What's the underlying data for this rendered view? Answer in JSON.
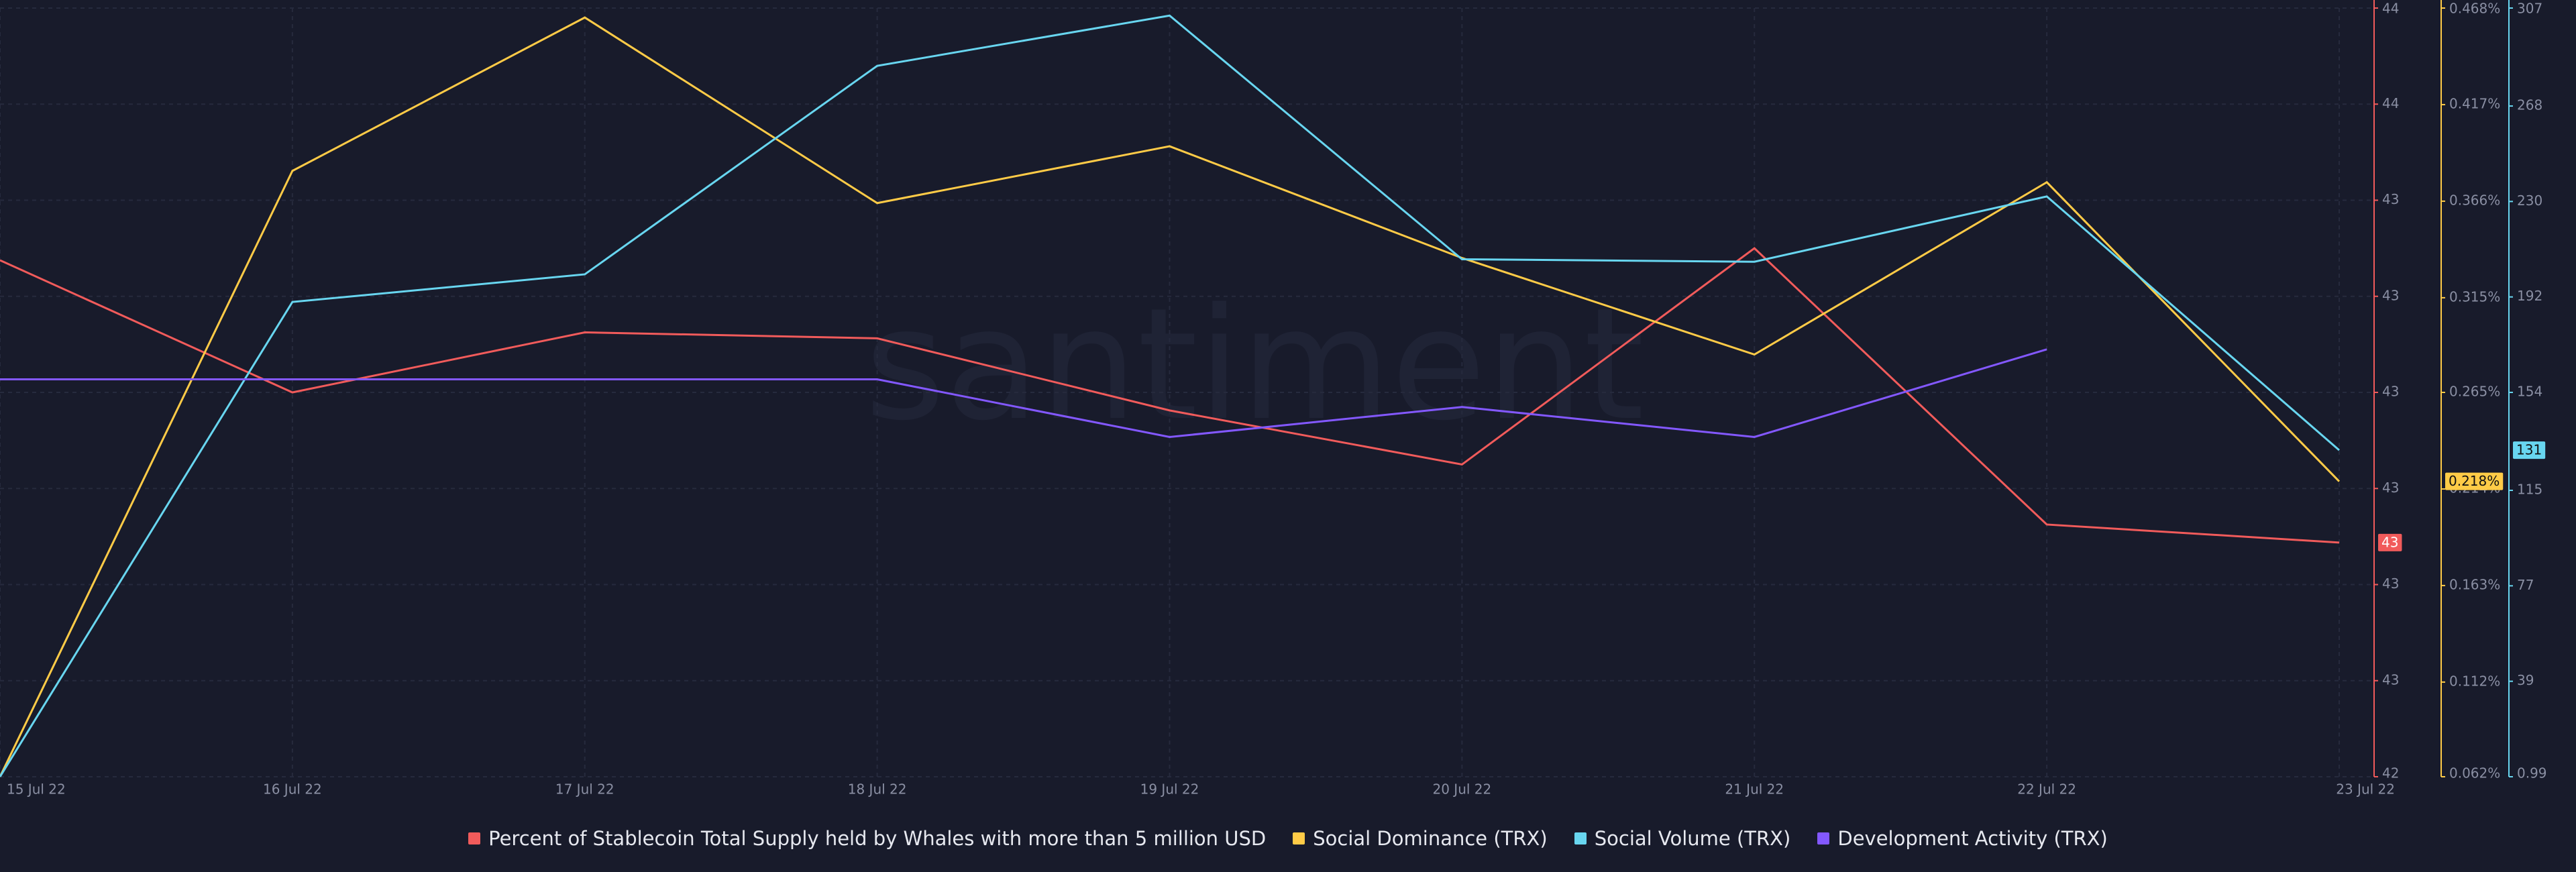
{
  "chart_data": {
    "type": "line",
    "watermark": "santiment",
    "categories": [
      "15 Jul 22",
      "16 Jul 22",
      "17 Jul 22",
      "18 Jul 22",
      "19 Jul 22",
      "20 Jul 22",
      "21 Jul 22",
      "22 Jul 22",
      "23 Jul 22"
    ],
    "ylim": [
      42.4,
      43.68
    ],
    "yticks": [
      {
        "value": 42.4,
        "label": "42"
      },
      {
        "value": 42.56,
        "label": "43"
      },
      {
        "value": 42.72,
        "label": "43"
      },
      {
        "value": 42.88,
        "label": "43"
      },
      {
        "value": 43.04,
        "label": "43"
      },
      {
        "value": 43.2,
        "label": "43"
      },
      {
        "value": 43.36,
        "label": "43"
      },
      {
        "value": 43.52,
        "label": "44"
      },
      {
        "value": 43.68,
        "label": "44"
      }
    ],
    "y2lim": [
      0.062,
      0.468
    ],
    "y2ticks": [
      {
        "value": 0.062,
        "label": "0.062%"
      },
      {
        "value": 0.112,
        "label": "0.112%"
      },
      {
        "value": 0.163,
        "label": "0.163%"
      },
      {
        "value": 0.214,
        "label": "0.214%"
      },
      {
        "value": 0.265,
        "label": "0.265%"
      },
      {
        "value": 0.315,
        "label": "0.315%"
      },
      {
        "value": 0.366,
        "label": "0.366%"
      },
      {
        "value": 0.417,
        "label": "0.417%"
      },
      {
        "value": 0.468,
        "label": "0.468%"
      }
    ],
    "y3lim": [
      0.99,
      307
    ],
    "y3ticks": [
      0.99,
      39,
      77,
      115,
      154,
      192,
      230,
      268,
      307
    ],
    "y4lim": [
      0,
      100
    ],
    "grid": true,
    "series": [
      {
        "name": "Percent of Stablecoin Total Supply held by Whales with more than 5 million USD",
        "color": "#f15b5b",
        "axis": "y",
        "values": [
          43.26,
          43.04,
          43.14,
          43.13,
          43.01,
          42.92,
          43.28,
          42.82,
          42.79
        ],
        "value_labels": [
          null,
          null,
          null,
          null,
          null,
          null,
          null,
          null,
          "43"
        ]
      },
      {
        "name": "Social Dominance (TRX)",
        "color": "#ffcb47",
        "axis": "y2",
        "values": [
          0.062,
          0.382,
          0.463,
          0.365,
          0.395,
          0.336,
          0.285,
          0.376,
          0.218
        ],
        "value_labels": [
          null,
          null,
          null,
          null,
          null,
          null,
          null,
          null,
          "0.218%"
        ]
      },
      {
        "name": "Social Volume (TRX)",
        "color": "#68d6f0",
        "axis": "y3",
        "values": [
          0.99,
          190,
          201,
          284,
          304,
          207,
          206,
          232,
          131
        ],
        "value_labels": [
          null,
          null,
          null,
          null,
          null,
          null,
          null,
          null,
          131
        ]
      },
      {
        "name": "Development Activity (TRX)",
        "color": "#8358ff",
        "axis": "y4",
        "values": [
          51.7,
          51.7,
          51.7,
          51.7,
          44.2,
          48.1,
          44.2,
          55.6,
          null
        ]
      }
    ]
  }
}
